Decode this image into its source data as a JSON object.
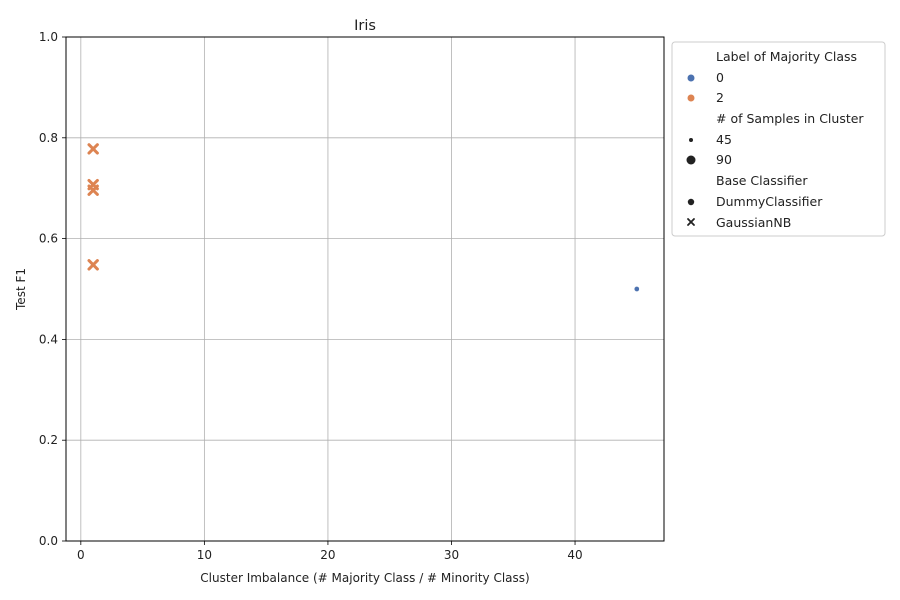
{
  "chart_data": {
    "type": "scatter",
    "title": "Iris",
    "xlabel": "Cluster Imbalance (# Majority Class / # Minority Class)",
    "ylabel": "Test F1",
    "xlim": [
      -1.2,
      47.2
    ],
    "ylim": [
      0.0,
      1.0
    ],
    "x_ticks": [
      0,
      10,
      20,
      30,
      40
    ],
    "y_ticks": [
      "0.0",
      "0.2",
      "0.4",
      "0.6",
      "0.8",
      "1.0"
    ],
    "grid": true,
    "legend_placement": "outside-upper-right",
    "colors": {
      "0": "#4c72b0",
      "2": "#dd8452"
    },
    "points": [
      {
        "x": 1,
        "y": 0.778,
        "label": 2,
        "samples": 90,
        "classifier": "GaussianNB"
      },
      {
        "x": 1,
        "y": 0.707,
        "label": 2,
        "samples": 90,
        "classifier": "GaussianNB"
      },
      {
        "x": 1,
        "y": 0.696,
        "label": 2,
        "samples": 90,
        "classifier": "GaussianNB"
      },
      {
        "x": 1,
        "y": 0.548,
        "label": 2,
        "samples": 90,
        "classifier": "GaussianNB"
      },
      {
        "x": 45,
        "y": 0.5,
        "label": 0,
        "samples": 45,
        "classifier": "DummyClassifier"
      }
    ],
    "legend": {
      "hue_title": "Label of Majority Class",
      "hue_entries": [
        {
          "label": "0",
          "color": "#4c72b0"
        },
        {
          "label": "2",
          "color": "#dd8452"
        }
      ],
      "size_title": "# of Samples in Cluster",
      "size_entries": [
        {
          "label": "45",
          "samples": 45
        },
        {
          "label": "90",
          "samples": 90
        }
      ],
      "style_title": "Base Classifier",
      "style_entries": [
        {
          "label": "DummyClassifier",
          "marker": "circle"
        },
        {
          "label": "GaussianNB",
          "marker": "x"
        }
      ]
    }
  }
}
